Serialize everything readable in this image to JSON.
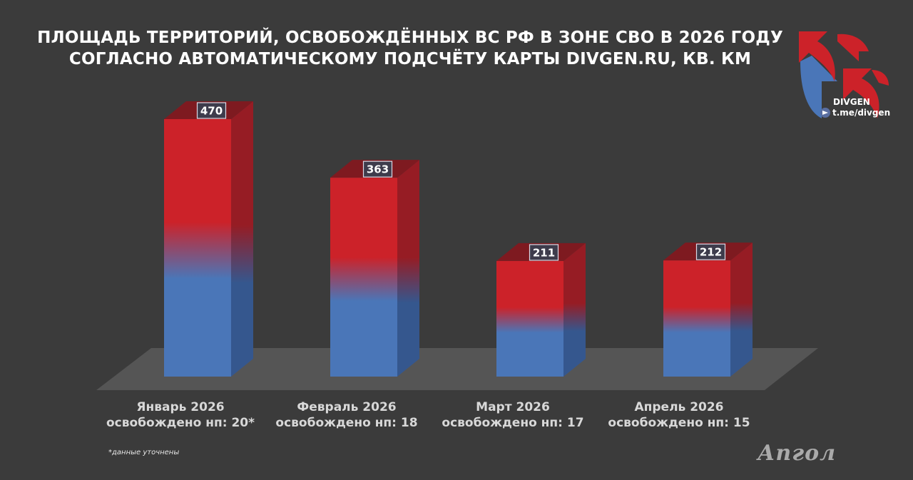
{
  "title": {
    "line1": "ПЛОЩАДЬ ТЕРРИТОРИЙ, ОСВОБОЖДЁННЫХ ВС РФ В ЗОНЕ СВО В 2026 ГОДУ",
    "line2": "СОГЛАСНО АВТОМАТИЧЕСКОМУ ПОДСЧЁТУ КАРТЫ DIVGEN.RU, КВ. КМ"
  },
  "chart_data": {
    "type": "bar",
    "categories": [
      "Январь 2026",
      "Февраль 2026",
      "Март 2026",
      "Апрель 2026"
    ],
    "values": [
      470,
      363,
      211,
      212
    ],
    "subtitles": [
      "освобождено нп: 20*",
      "освобождено нп: 18",
      "освобождено нп: 17",
      "освобождено нп: 15"
    ],
    "xlabel": "",
    "ylabel": "",
    "ylim": [
      0,
      500
    ],
    "grid": false,
    "colors": {
      "top": "#cc2229",
      "bottom": "#4a76b8",
      "floor": "#555555"
    }
  },
  "footnote": "*данные уточнены",
  "logo": {
    "name": "DIVGEN",
    "link": "t.me/divgen",
    "icon": "divgen-arrows-logo"
  },
  "watermark": "Апгол"
}
